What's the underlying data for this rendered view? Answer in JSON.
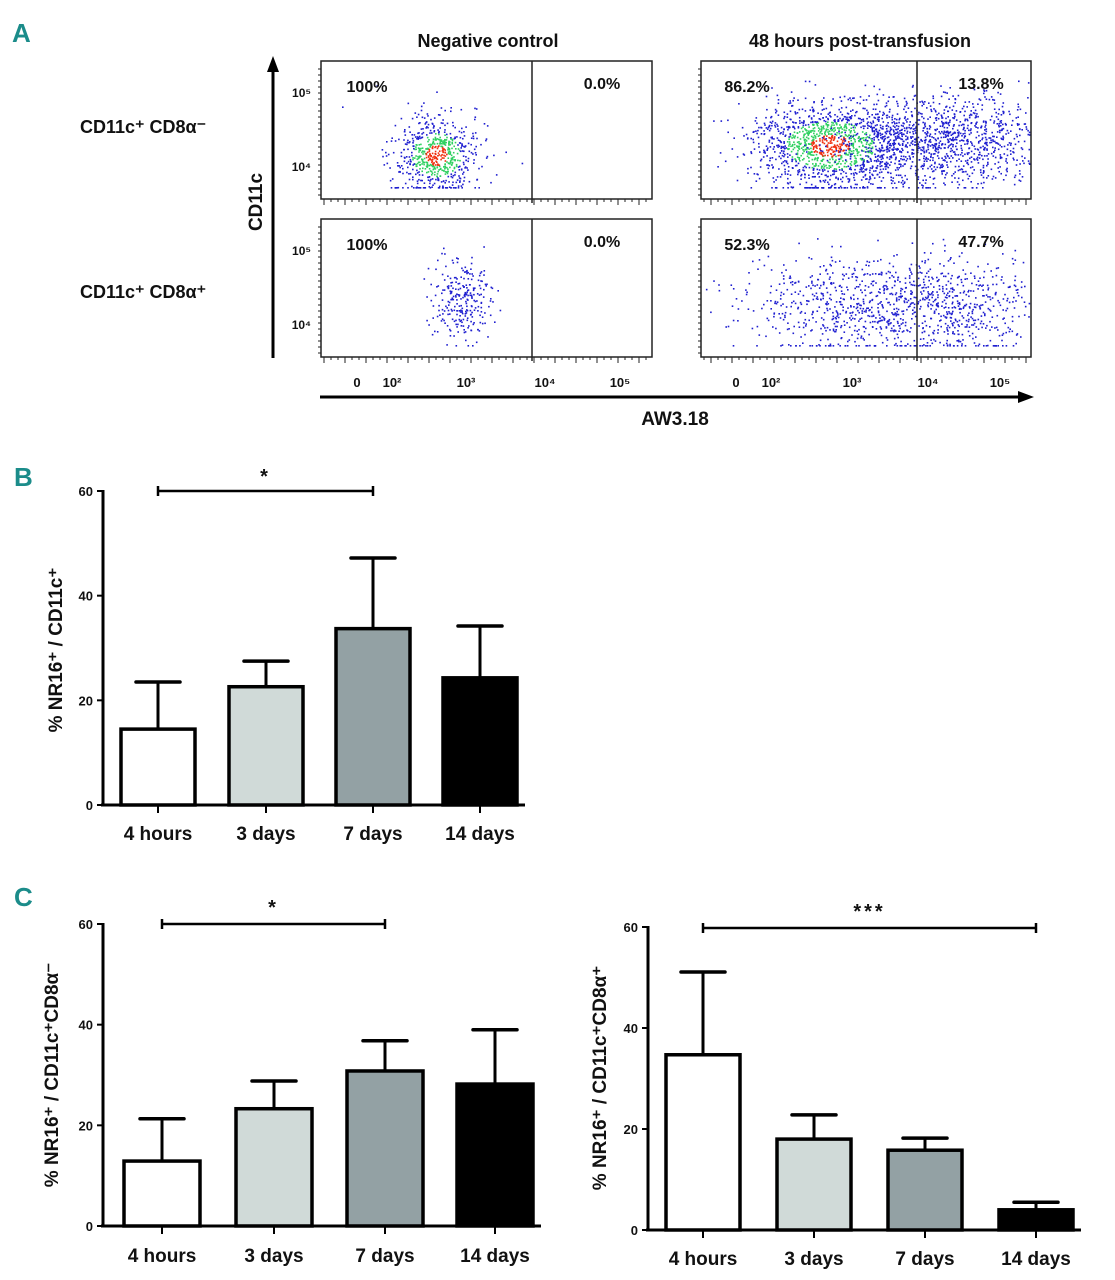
{
  "panel_letters": {
    "a": "A",
    "b": "B",
    "c": "C"
  },
  "flow": {
    "column_titles": [
      "Negative control",
      "48 hours post-transfusion"
    ],
    "row_labels": [
      "CD11c⁺ CD8α⁻",
      "CD11c⁺ CD8α⁺"
    ],
    "y_axis_label": "CD11c",
    "x_axis_label": "AW3.18",
    "y_ticks": [
      "10⁵",
      "10⁴"
    ],
    "x_ticks": [
      "0",
      "10²",
      "10³",
      "10⁴",
      "10⁵"
    ],
    "plots": [
      {
        "column": "Negative control",
        "row": "CD11c⁺ CD8α⁻",
        "left_pct": "100%",
        "right_pct": "0.0%"
      },
      {
        "column": "Negative control",
        "row": "CD11c⁺ CD8α⁺",
        "left_pct": "100%",
        "right_pct": "0.0%"
      },
      {
        "column": "48 hours post-transfusion",
        "row": "CD11c⁺ CD8α⁻",
        "left_pct": "86.2%",
        "right_pct": "13.8%"
      },
      {
        "column": "48 hours post-transfusion",
        "row": "CD11c⁺ CD8α⁺",
        "left_pct": "52.3%",
        "right_pct": "47.7%"
      }
    ],
    "colors": {
      "low": "#1f1fd0",
      "mid": "#2fd060",
      "high": "#f03010"
    }
  },
  "chart_data": [
    {
      "type": "bar",
      "panel": "B",
      "categories": [
        "4 hours",
        "3 days",
        "7 days",
        "14 days"
      ],
      "values": [
        14.5,
        22.6,
        33.7,
        24.3
      ],
      "error_upper": [
        23.5,
        27.5,
        47.2,
        34.2
      ],
      "ylabel": "% NR16⁺ / CD11c⁺",
      "ylim": [
        0,
        60
      ],
      "yticks": [
        "0",
        "20",
        "40",
        "60"
      ],
      "bar_colors": [
        "#ffffff",
        "#d0dad8",
        "#93a1a4",
        "#000000"
      ],
      "significance": {
        "from": "4 hours",
        "to": "7 days",
        "label": "*"
      }
    },
    {
      "type": "bar",
      "panel": "C-left",
      "categories": [
        "4 hours",
        "3 days",
        "7 days",
        "14 days"
      ],
      "values": [
        12.9,
        23.3,
        30.8,
        28.2
      ],
      "error_upper": [
        21.3,
        28.8,
        36.8,
        39.0
      ],
      "ylabel": "% NR16⁺ / CD11c⁺CD8α⁻",
      "ylim": [
        0,
        60
      ],
      "yticks": [
        "0",
        "20",
        "40",
        "60"
      ],
      "bar_colors": [
        "#ffffff",
        "#d0dad8",
        "#93a1a4",
        "#000000"
      ],
      "significance": {
        "from": "4 hours",
        "to": "7 days",
        "label": "*"
      }
    },
    {
      "type": "bar",
      "panel": "C-right",
      "categories": [
        "4 hours",
        "3 days",
        "7 days",
        "14 days"
      ],
      "values": [
        34.7,
        18.0,
        15.8,
        4.0
      ],
      "error_upper": [
        51.1,
        22.8,
        18.2,
        5.5
      ],
      "ylabel": "% NR16⁺ / CD11c⁺CD8α⁺",
      "ylim": [
        0,
        60
      ],
      "yticks": [
        "0",
        "20",
        "40",
        "60"
      ],
      "bar_colors": [
        "#ffffff",
        "#d0dad8",
        "#93a1a4",
        "#000000"
      ],
      "significance": {
        "from": "4 hours",
        "to": "14 days",
        "label": "***"
      }
    }
  ]
}
